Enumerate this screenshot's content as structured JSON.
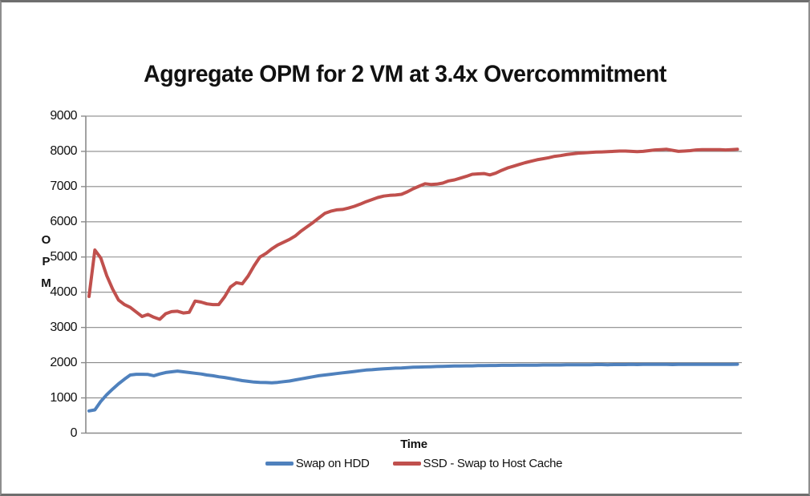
{
  "chart_data": {
    "type": "line",
    "title": "Aggregate OPM for 2 VM at 3.4x Overcommitment",
    "xlabel": "Time",
    "ylabel": "OPM",
    "x_axis": {
      "label": "Time",
      "tick_labels_shown": false
    },
    "y_axis": {
      "label": "OPM",
      "min": 0,
      "max": 9000,
      "tick_step": 1000
    },
    "y_tick_labels": [
      "9000",
      "8000",
      "7000",
      "6000",
      "5000",
      "4000",
      "3000",
      "2000",
      "1000",
      "0"
    ],
    "grid": "horizontal",
    "legend_position": "bottom",
    "series": [
      {
        "name": "Swap on HDD",
        "color": "#4F81BD",
        "values": [
          630,
          660,
          900,
          1090,
          1250,
          1400,
          1530,
          1650,
          1670,
          1670,
          1665,
          1630,
          1680,
          1720,
          1740,
          1760,
          1740,
          1720,
          1700,
          1680,
          1650,
          1630,
          1600,
          1580,
          1550,
          1520,
          1490,
          1470,
          1450,
          1440,
          1435,
          1430,
          1440,
          1460,
          1480,
          1510,
          1540,
          1570,
          1600,
          1630,
          1650,
          1670,
          1690,
          1710,
          1730,
          1750,
          1770,
          1790,
          1800,
          1815,
          1825,
          1835,
          1845,
          1850,
          1860,
          1870,
          1875,
          1880,
          1885,
          1890,
          1895,
          1900,
          1905,
          1905,
          1910,
          1910,
          1915,
          1915,
          1920,
          1920,
          1925,
          1925,
          1925,
          1930,
          1930,
          1930,
          1930,
          1935,
          1935,
          1935,
          1935,
          1940,
          1940,
          1940,
          1940,
          1940,
          1945,
          1945,
          1940,
          1945,
          1945,
          1945,
          1950,
          1945,
          1950,
          1950,
          1950,
          1950,
          1950,
          1945,
          1950,
          1950,
          1950,
          1950,
          1950,
          1950,
          1950,
          1950,
          1950,
          1950,
          1955
        ]
      },
      {
        "name": "SSD - Swap to Host Cache",
        "color": "#C0504D",
        "values": [
          3880,
          5200,
          4970,
          4470,
          4090,
          3780,
          3650,
          3570,
          3440,
          3310,
          3370,
          3290,
          3230,
          3390,
          3450,
          3460,
          3410,
          3430,
          3750,
          3720,
          3670,
          3650,
          3650,
          3870,
          4150,
          4270,
          4240,
          4460,
          4750,
          5000,
          5100,
          5230,
          5340,
          5420,
          5500,
          5600,
          5740,
          5860,
          5980,
          6110,
          6240,
          6300,
          6340,
          6350,
          6390,
          6440,
          6500,
          6570,
          6630,
          6690,
          6730,
          6750,
          6760,
          6780,
          6850,
          6940,
          7010,
          7080,
          7060,
          7070,
          7100,
          7160,
          7190,
          7240,
          7290,
          7350,
          7360,
          7370,
          7330,
          7380,
          7460,
          7530,
          7580,
          7630,
          7680,
          7720,
          7760,
          7790,
          7820,
          7860,
          7880,
          7910,
          7930,
          7950,
          7960,
          7970,
          7980,
          7985,
          7990,
          8000,
          8010,
          8010,
          8000,
          7990,
          8000,
          8020,
          8040,
          8050,
          8060,
          8030,
          8000,
          8010,
          8020,
          8040,
          8050,
          8050,
          8050,
          8050,
          8040,
          8050,
          8060
        ]
      }
    ]
  }
}
